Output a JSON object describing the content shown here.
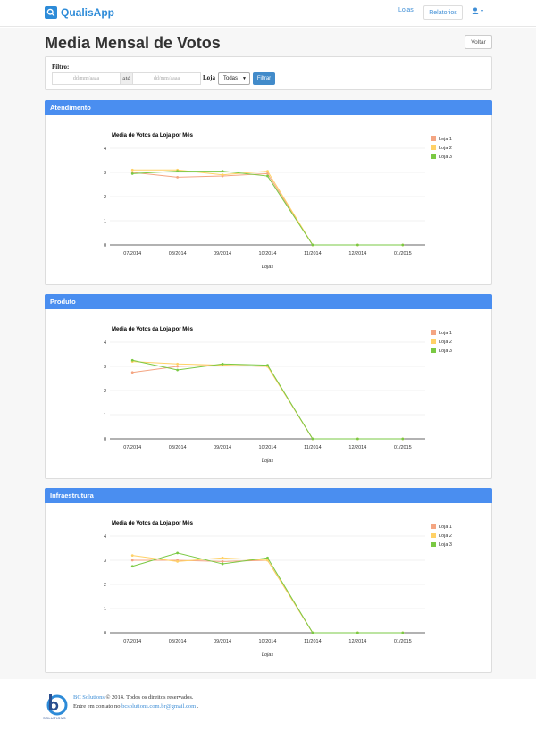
{
  "navbar": {
    "brand": "QualisApp",
    "links": {
      "lojas": "Lojas",
      "relatorios": "Relatorios"
    },
    "user_caret": "▾"
  },
  "page": {
    "title": "Media Mensal de Votos",
    "back_button": "Voltar"
  },
  "filter": {
    "label": "Filtro:",
    "date_from_placeholder": "dd/mm/aaaa",
    "ate": "até",
    "date_to_placeholder": "dd/mm/aaaa",
    "loja_label": "Loja",
    "loja_selected": "Todas",
    "submit": "Filtrar"
  },
  "colors": {
    "loja1": "#f4a582",
    "loja2": "#ffd166",
    "loja3": "#7ac943",
    "panel_heading": "#4a8ef0"
  },
  "panels": [
    {
      "heading": "Atendimento"
    },
    {
      "heading": "Produto"
    },
    {
      "heading": "Infraestrutura"
    }
  ],
  "chart_data": [
    {
      "type": "line",
      "title": "Media de Votos da Loja por Mês",
      "xlabel": "Lojas",
      "ylabel": "",
      "categories": [
        "07/2014",
        "08/2014",
        "09/2014",
        "10/2014",
        "11/2014",
        "12/2014",
        "01/2015"
      ],
      "ylim": [
        0,
        4
      ],
      "yticks": [
        "0",
        "1",
        "2",
        "3",
        "4"
      ],
      "legend": "top-right",
      "series": [
        {
          "name": "Loja 1",
          "values": [
            3.0,
            2.8,
            2.85,
            2.95,
            0,
            0,
            0
          ]
        },
        {
          "name": "Loja 2",
          "values": [
            3.1,
            3.1,
            2.9,
            3.05,
            0,
            0,
            0
          ]
        },
        {
          "name": "Loja 3",
          "values": [
            2.95,
            3.05,
            3.05,
            2.85,
            0,
            0,
            0
          ]
        }
      ]
    },
    {
      "type": "line",
      "title": "Media de Votos da Loja por Mês",
      "xlabel": "Lojas",
      "ylabel": "",
      "categories": [
        "07/2014",
        "08/2014",
        "09/2014",
        "10/2014",
        "11/2014",
        "12/2014",
        "01/2015"
      ],
      "ylim": [
        0,
        4
      ],
      "yticks": [
        "0",
        "1",
        "2",
        "3",
        "4"
      ],
      "legend": "top-right",
      "series": [
        {
          "name": "Loja 1",
          "values": [
            2.75,
            3.0,
            3.05,
            3.0,
            0,
            0,
            0
          ]
        },
        {
          "name": "Loja 2",
          "values": [
            3.2,
            3.1,
            3.05,
            3.0,
            0,
            0,
            0
          ]
        },
        {
          "name": "Loja 3",
          "values": [
            3.25,
            2.85,
            3.1,
            3.05,
            0,
            0,
            0
          ]
        }
      ]
    },
    {
      "type": "line",
      "title": "Media de Votos da Loja por Mês",
      "xlabel": "Lojas",
      "ylabel": "",
      "categories": [
        "07/2014",
        "08/2014",
        "09/2014",
        "10/2014",
        "11/2014",
        "12/2014",
        "01/2015"
      ],
      "ylim": [
        0,
        4
      ],
      "yticks": [
        "0",
        "1",
        "2",
        "3",
        "4"
      ],
      "legend": "top-right",
      "series": [
        {
          "name": "Loja 1",
          "values": [
            3.0,
            3.0,
            2.95,
            3.0,
            0,
            0,
            0
          ]
        },
        {
          "name": "Loja 2",
          "values": [
            3.2,
            2.95,
            3.1,
            3.0,
            0,
            0,
            0
          ]
        },
        {
          "name": "Loja 3",
          "values": [
            2.75,
            3.3,
            2.85,
            3.1,
            0,
            0,
            0
          ]
        }
      ]
    }
  ],
  "footer": {
    "logo_text": "SOLUTIONS",
    "company": "BC Solutions",
    "copyright": "© 2014. Todos os direitos reservados.",
    "contact_prefix": "Entre em contato no",
    "email": "bcsolutions.com.br@gmail.com",
    "contact_suffix": "."
  }
}
